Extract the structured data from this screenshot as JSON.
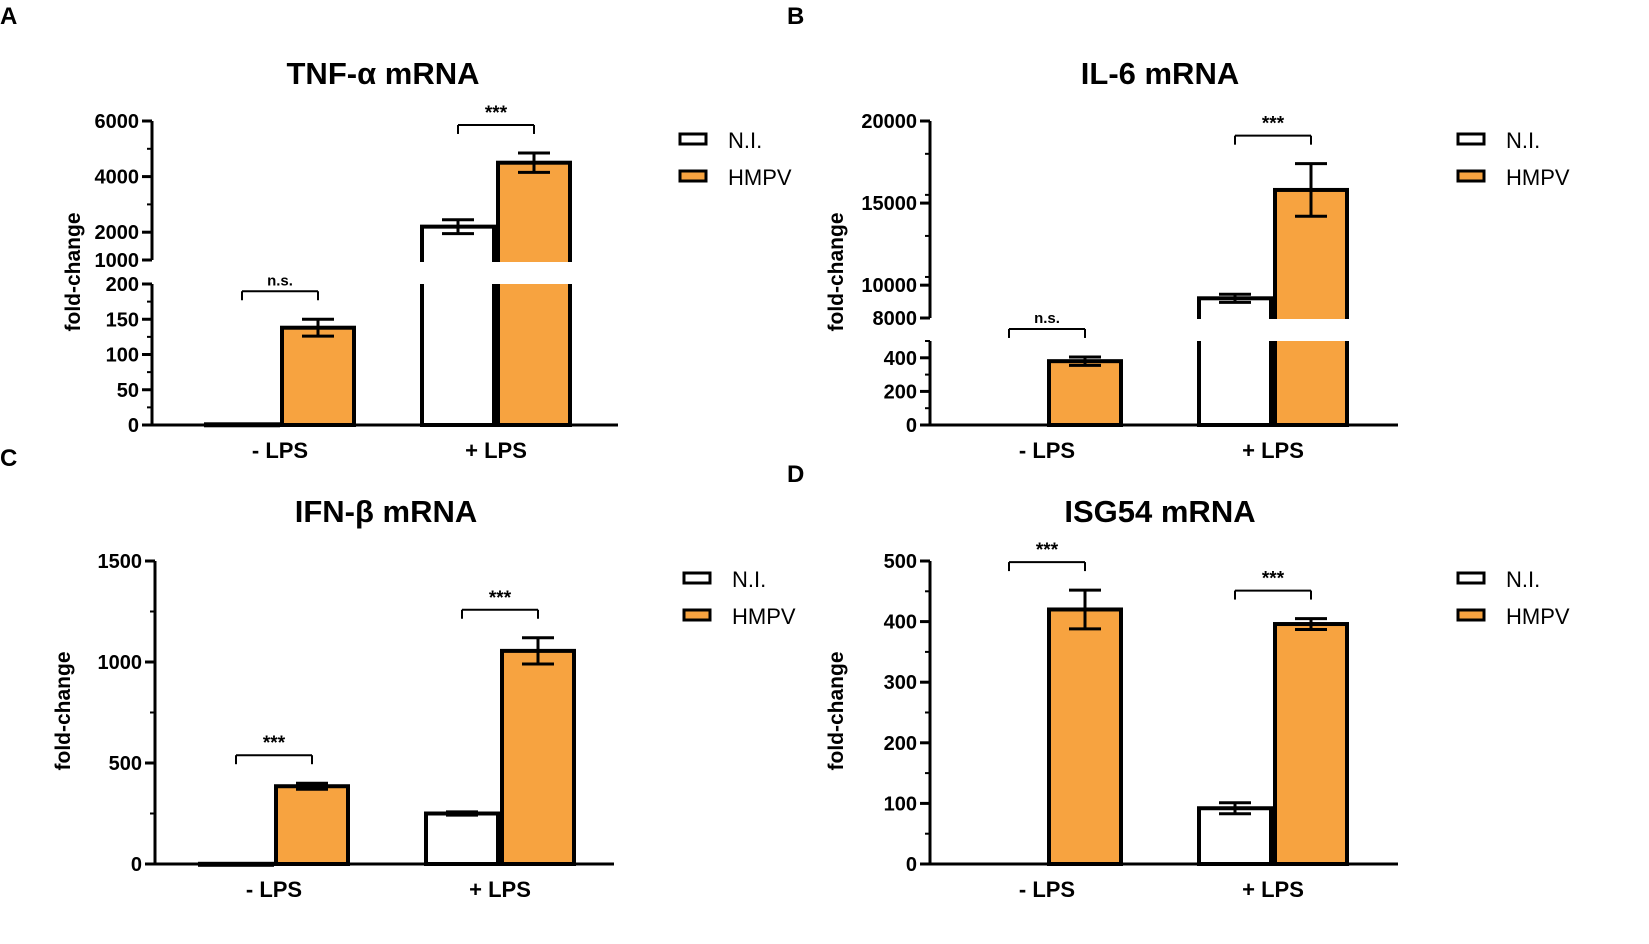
{
  "colors": {
    "hmpv": "#F7A340",
    "ni": "#FFFFFF",
    "stroke": "#000000"
  },
  "chart_data": [
    {
      "panel": "A",
      "type": "bar",
      "title": "TNF-α mRNA",
      "ylabel": "fold-change",
      "categories": [
        "- LPS",
        "+ LPS"
      ],
      "legend": [
        "N.I.",
        "HMPV"
      ],
      "series": [
        {
          "name": "N.I.",
          "values": [
            1,
            2200
          ],
          "errors": [
            0,
            250
          ]
        },
        {
          "name": "HMPV",
          "values": [
            138,
            4500
          ],
          "errors": [
            12,
            350
          ]
        }
      ],
      "y_broken": true,
      "y_lower_range": [
        0,
        200
      ],
      "y_lower_ticks": [
        "0",
        "50",
        "100",
        "150",
        "200"
      ],
      "y_upper_range": [
        1000,
        6000
      ],
      "y_upper_ticks": [
        "1000",
        "2000",
        "4000",
        "6000"
      ],
      "significance": [
        {
          "category": "- LPS",
          "label": "n.s."
        },
        {
          "category": "+ LPS",
          "label": "***"
        }
      ]
    },
    {
      "panel": "B",
      "type": "bar",
      "title": "IL-6 mRNA",
      "ylabel": "fold-change",
      "categories": [
        "- LPS",
        "+ LPS"
      ],
      "legend": [
        "N.I.",
        "HMPV"
      ],
      "series": [
        {
          "name": "N.I.",
          "values": [
            0,
            9200
          ],
          "errors": [
            0,
            250
          ]
        },
        {
          "name": "HMPV",
          "values": [
            380,
            15800
          ],
          "errors": [
            25,
            1600
          ]
        }
      ],
      "y_broken": true,
      "y_lower_range": [
        0,
        500
      ],
      "y_lower_ticks": [
        "0",
        "200",
        "400"
      ],
      "y_upper_range": [
        8000,
        20000
      ],
      "y_upper_ticks": [
        "8000",
        "10000",
        "15000",
        "20000"
      ],
      "significance": [
        {
          "category": "- LPS",
          "label": "n.s."
        },
        {
          "category": "+ LPS",
          "label": "***"
        }
      ]
    },
    {
      "panel": "C",
      "type": "bar",
      "title": "IFN-β mRNA",
      "ylabel": "fold-change",
      "categories": [
        "- LPS",
        "+ LPS"
      ],
      "legend": [
        "N.I.",
        "HMPV"
      ],
      "series": [
        {
          "name": "N.I.",
          "values": [
            1,
            250
          ],
          "errors": [
            0,
            8
          ]
        },
        {
          "name": "HMPV",
          "values": [
            385,
            1055
          ],
          "errors": [
            15,
            65
          ]
        }
      ],
      "y_broken": false,
      "ylim": [
        0,
        1500
      ],
      "y_ticks": [
        "0",
        "500",
        "1000",
        "1500"
      ],
      "significance": [
        {
          "category": "- LPS",
          "label": "***"
        },
        {
          "category": "+ LPS",
          "label": "***"
        }
      ]
    },
    {
      "panel": "D",
      "type": "bar",
      "title": "ISG54 mRNA",
      "ylabel": "fold-change",
      "categories": [
        "- LPS",
        "+ LPS"
      ],
      "legend": [
        "N.I.",
        "HMPV"
      ],
      "series": [
        {
          "name": "N.I.",
          "values": [
            0,
            92
          ],
          "errors": [
            0,
            9
          ]
        },
        {
          "name": "HMPV",
          "values": [
            420,
            396
          ],
          "errors": [
            32,
            9
          ]
        }
      ],
      "y_broken": false,
      "ylim": [
        0,
        500
      ],
      "y_ticks": [
        "0",
        "100",
        "200",
        "300",
        "400",
        "500"
      ],
      "significance": [
        {
          "category": "- LPS",
          "label": "***"
        },
        {
          "category": "+ LPS",
          "label": "***"
        }
      ]
    }
  ]
}
